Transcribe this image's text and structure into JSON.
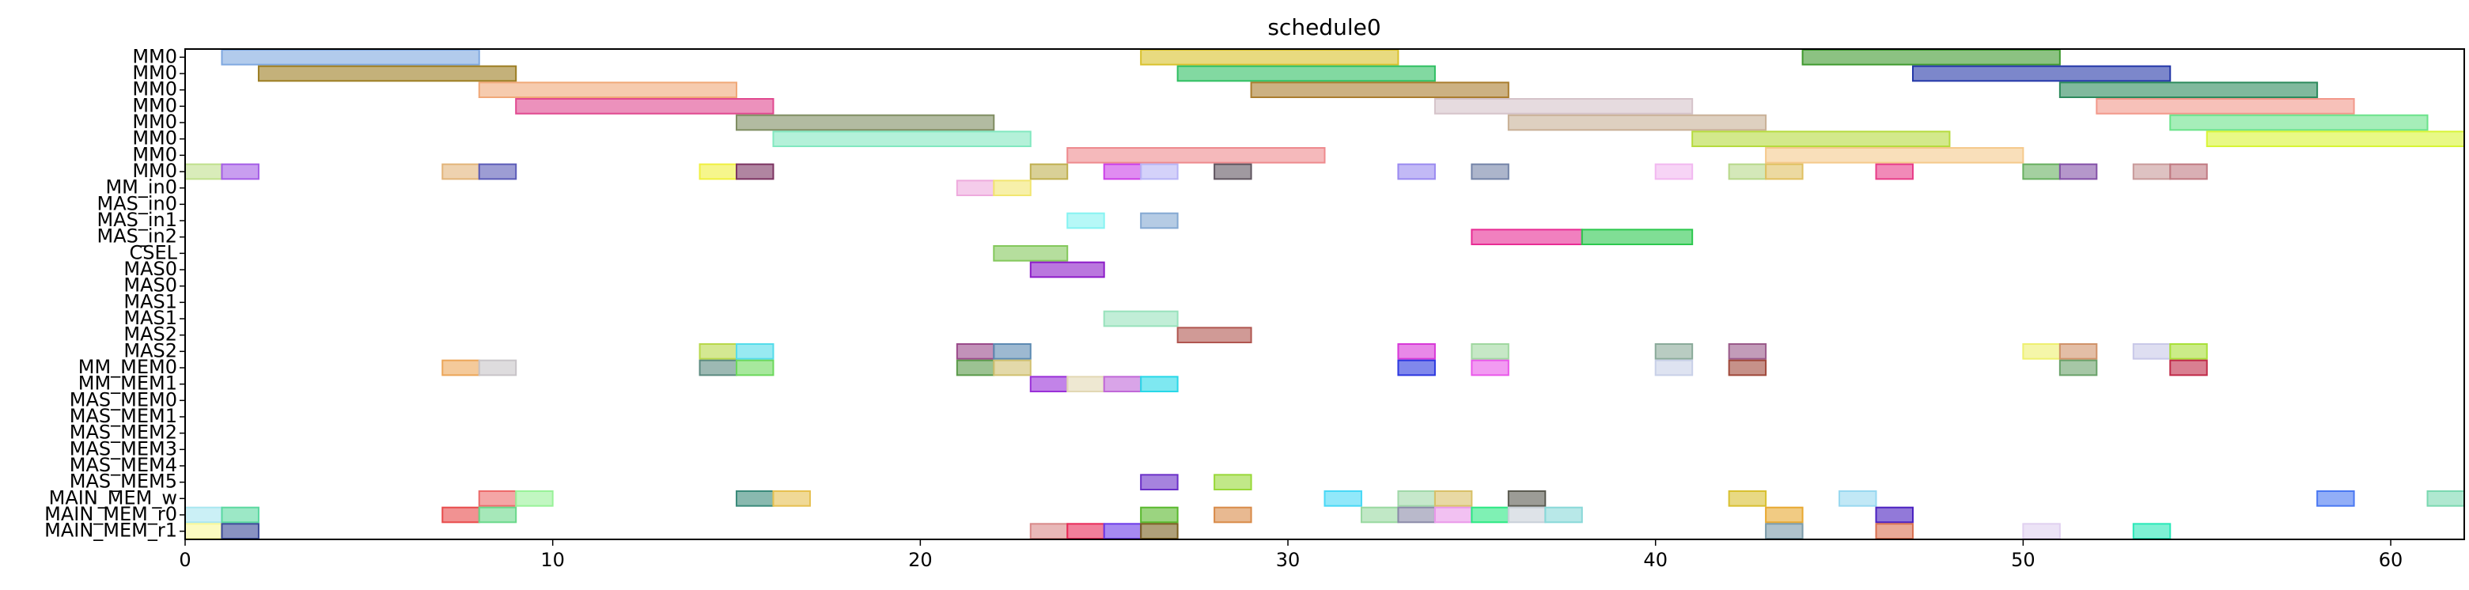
{
  "chart_data": {
    "type": "gantt",
    "title": "schedule0",
    "xlabel": "",
    "ylabel": "",
    "xlim": [
      0,
      62
    ],
    "xticks": [
      0,
      10,
      20,
      30,
      40,
      50,
      60
    ],
    "grid": false,
    "rows": [
      "MM0",
      "MM0",
      "MM0",
      "MM0",
      "MM0",
      "MM0",
      "MM0",
      "MM0",
      "MM_in0",
      "MAS_in0",
      "MAS_in1",
      "MAS_in2",
      "CSEL",
      "MAS0",
      "MAS0",
      "MAS1",
      "MAS1",
      "MAS2",
      "MAS2",
      "MM_MEM0",
      "MM_MEM1",
      "MAS_MEM0",
      "MAS_MEM1",
      "MAS_MEM2",
      "MAS_MEM3",
      "MAS_MEM4",
      "MAS_MEM5",
      "MAIN_MEM_w",
      "MAIN_MEM_r0",
      "MAIN_MEM_r1"
    ],
    "tasks": [
      {
        "row": 0,
        "start": 1,
        "end": 8,
        "color": "#7fa8e0"
      },
      {
        "row": 0,
        "start": 26,
        "end": 33,
        "color": "#d9c12c"
      },
      {
        "row": 0,
        "start": 44,
        "end": 51,
        "color": "#3f9a2e"
      },
      {
        "row": 1,
        "start": 2,
        "end": 9,
        "color": "#9c7d22"
      },
      {
        "row": 1,
        "start": 27,
        "end": 34,
        "color": "#2fbf62"
      },
      {
        "row": 1,
        "start": 47,
        "end": 54,
        "color": "#2437a8"
      },
      {
        "row": 2,
        "start": 8,
        "end": 15,
        "color": "#f0a878"
      },
      {
        "row": 2,
        "start": 29,
        "end": 36,
        "color": "#aa7d2e"
      },
      {
        "row": 2,
        "start": 51,
        "end": 58,
        "color": "#2c8a5c"
      },
      {
        "row": 3,
        "start": 9,
        "end": 16,
        "color": "#e0488f"
      },
      {
        "row": 3,
        "start": 34,
        "end": 41,
        "color": "#d5c3c9"
      },
      {
        "row": 3,
        "start": 52,
        "end": 59,
        "color": "#f2988a"
      },
      {
        "row": 4,
        "start": 15,
        "end": 22,
        "color": "#7f8d62"
      },
      {
        "row": 4,
        "start": 36,
        "end": 43,
        "color": "#c8b096"
      },
      {
        "row": 4,
        "start": 54,
        "end": 61,
        "color": "#6ae38a"
      },
      {
        "row": 5,
        "start": 16,
        "end": 23,
        "color": "#82e8c0"
      },
      {
        "row": 5,
        "start": 41,
        "end": 48,
        "color": "#b6db3e"
      },
      {
        "row": 5,
        "start": 55,
        "end": 62,
        "color": "#d8f536"
      },
      {
        "row": 6,
        "start": 24,
        "end": 31,
        "color": "#ee8a8e"
      },
      {
        "row": 6,
        "start": 43,
        "end": 50,
        "color": "#f5c98c"
      },
      {
        "row": 7,
        "start": 0,
        "end": 1,
        "color": "#bfe08c"
      },
      {
        "row": 7,
        "start": 1,
        "end": 2,
        "color": "#a55ee6"
      },
      {
        "row": 7,
        "start": 7,
        "end": 8,
        "color": "#e2b47a"
      },
      {
        "row": 7,
        "start": 8,
        "end": 9,
        "color": "#5c5cb8"
      },
      {
        "row": 7,
        "start": 14,
        "end": 15,
        "color": "#f0f040"
      },
      {
        "row": 7,
        "start": 15,
        "end": 16,
        "color": "#7c3462"
      },
      {
        "row": 7,
        "start": 23,
        "end": 24,
        "color": "#c0b050"
      },
      {
        "row": 7,
        "start": 25,
        "end": 26,
        "color": "#cc40e8"
      },
      {
        "row": 7,
        "start": 26,
        "end": 27,
        "color": "#b8b4f6"
      },
      {
        "row": 7,
        "start": 28,
        "end": 29,
        "color": "#605560"
      },
      {
        "row": 7,
        "start": 33,
        "end": 34,
        "color": "#9a8af0"
      },
      {
        "row": 7,
        "start": 35,
        "end": 36,
        "color": "#7484a8"
      },
      {
        "row": 7,
        "start": 40,
        "end": 41,
        "color": "#f2b8f0"
      },
      {
        "row": 7,
        "start": 42,
        "end": 43,
        "color": "#b8d88a"
      },
      {
        "row": 7,
        "start": 43,
        "end": 44,
        "color": "#e0c060"
      },
      {
        "row": 7,
        "start": 46,
        "end": 47,
        "color": "#e83c88"
      },
      {
        "row": 7,
        "start": 50,
        "end": 51,
        "color": "#68b060"
      },
      {
        "row": 7,
        "start": 51,
        "end": 52,
        "color": "#8452a8"
      },
      {
        "row": 7,
        "start": 53,
        "end": 54,
        "color": "#c89a9a"
      },
      {
        "row": 7,
        "start": 54,
        "end": 55,
        "color": "#c07a82"
      },
      {
        "row": 8,
        "start": 21,
        "end": 22,
        "color": "#eeaadd"
      },
      {
        "row": 8,
        "start": 22,
        "end": 23,
        "color": "#f2e670"
      },
      {
        "row": 10,
        "start": 24,
        "end": 25,
        "color": "#86f3f2"
      },
      {
        "row": 10,
        "start": 26,
        "end": 27,
        "color": "#84a8d2"
      },
      {
        "row": 11,
        "start": 35,
        "end": 38,
        "color": "#e82c94"
      },
      {
        "row": 11,
        "start": 38,
        "end": 41,
        "color": "#2cc84e"
      },
      {
        "row": 12,
        "start": 22,
        "end": 24,
        "color": "#84c85c"
      },
      {
        "row": 13,
        "start": 23,
        "end": 25,
        "color": "#8c1cc8"
      },
      {
        "row": 16,
        "start": 25,
        "end": 27,
        "color": "#98e2bc"
      },
      {
        "row": 17,
        "start": 27,
        "end": 29,
        "color": "#b05650"
      },
      {
        "row": 18,
        "start": 14,
        "end": 15,
        "color": "#b8d84a"
      },
      {
        "row": 18,
        "start": 15,
        "end": 16,
        "color": "#54dcea"
      },
      {
        "row": 18,
        "start": 21,
        "end": 22,
        "color": "#9a4a8a"
      },
      {
        "row": 18,
        "start": 22,
        "end": 23,
        "color": "#5c8ab2"
      },
      {
        "row": 18,
        "start": 33,
        "end": 34,
        "color": "#d838d8"
      },
      {
        "row": 18,
        "start": 35,
        "end": 36,
        "color": "#a0d8a0"
      },
      {
        "row": 18,
        "start": 40,
        "end": 41,
        "color": "#8aaa9a"
      },
      {
        "row": 18,
        "start": 42,
        "end": 43,
        "color": "#9a5a8a"
      },
      {
        "row": 18,
        "start": 50,
        "end": 51,
        "color": "#eef070"
      },
      {
        "row": 18,
        "start": 51,
        "end": 52,
        "color": "#d0926a"
      },
      {
        "row": 18,
        "start": 53,
        "end": 54,
        "color": "#c8c8e8"
      },
      {
        "row": 18,
        "start": 54,
        "end": 55,
        "color": "#a8e038"
      },
      {
        "row": 19,
        "start": 7,
        "end": 8,
        "color": "#eca658"
      },
      {
        "row": 19,
        "start": 8,
        "end": 9,
        "color": "#c8c4c8"
      },
      {
        "row": 19,
        "start": 14,
        "end": 15,
        "color": "#5c8a80"
      },
      {
        "row": 19,
        "start": 15,
        "end": 16,
        "color": "#6cd85c"
      },
      {
        "row": 19,
        "start": 21,
        "end": 22,
        "color": "#5a9a4a"
      },
      {
        "row": 19,
        "start": 22,
        "end": 23,
        "color": "#d0c070"
      },
      {
        "row": 19,
        "start": 33,
        "end": 34,
        "color": "#2c38e0"
      },
      {
        "row": 19,
        "start": 35,
        "end": 36,
        "color": "#ea58ea"
      },
      {
        "row": 19,
        "start": 40,
        "end": 41,
        "color": "#c8d0e8"
      },
      {
        "row": 19,
        "start": 42,
        "end": 43,
        "color": "#a0483a"
      },
      {
        "row": 19,
        "start": 51,
        "end": 52,
        "color": "#6aa26a"
      },
      {
        "row": 19,
        "start": 54,
        "end": 55,
        "color": "#c02a48"
      },
      {
        "row": 20,
        "start": 23,
        "end": 24,
        "color": "#9a30d8"
      },
      {
        "row": 20,
        "start": 24,
        "end": 25,
        "color": "#e2d8b4"
      },
      {
        "row": 20,
        "start": 25,
        "end": 26,
        "color": "#c068d8"
      },
      {
        "row": 20,
        "start": 26,
        "end": 27,
        "color": "#28d8e8"
      },
      {
        "row": 26,
        "start": 26,
        "end": 27,
        "color": "#6a30c8"
      },
      {
        "row": 26,
        "start": 28,
        "end": 29,
        "color": "#98d838"
      },
      {
        "row": 27,
        "start": 8,
        "end": 9,
        "color": "#ec6a6a"
      },
      {
        "row": 27,
        "start": 9,
        "end": 10,
        "color": "#98f298"
      },
      {
        "row": 27,
        "start": 15,
        "end": 16,
        "color": "#3a8a7a"
      },
      {
        "row": 27,
        "start": 16,
        "end": 17,
        "color": "#e6c050"
      },
      {
        "row": 27,
        "start": 31,
        "end": 32,
        "color": "#48d8f6"
      },
      {
        "row": 27,
        "start": 33,
        "end": 34,
        "color": "#a0d8a8"
      },
      {
        "row": 27,
        "start": 34,
        "end": 35,
        "color": "#d8c068"
      },
      {
        "row": 27,
        "start": 36,
        "end": 37,
        "color": "#5a5a50"
      },
      {
        "row": 27,
        "start": 42,
        "end": 43,
        "color": "#d8c030"
      },
      {
        "row": 27,
        "start": 45,
        "end": 46,
        "color": "#98d8f0"
      },
      {
        "row": 27,
        "start": 58,
        "end": 59,
        "color": "#4a78f2"
      },
      {
        "row": 27,
        "start": 61,
        "end": 62,
        "color": "#7ad8b0"
      },
      {
        "row": 28,
        "start": 0,
        "end": 1,
        "color": "#a8e6f0"
      },
      {
        "row": 28,
        "start": 1,
        "end": 2,
        "color": "#5ad8a0"
      },
      {
        "row": 28,
        "start": 7,
        "end": 8,
        "color": "#e84a4a"
      },
      {
        "row": 28,
        "start": 8,
        "end": 9,
        "color": "#6ad88a"
      },
      {
        "row": 28,
        "start": 26,
        "end": 27,
        "color": "#58b82c"
      },
      {
        "row": 28,
        "start": 28,
        "end": 29,
        "color": "#d88a48"
      },
      {
        "row": 28,
        "start": 32,
        "end": 33,
        "color": "#98d8a0"
      },
      {
        "row": 28,
        "start": 33,
        "end": 34,
        "color": "#8a8aa8"
      },
      {
        "row": 28,
        "start": 34,
        "end": 35,
        "color": "#ea98ea"
      },
      {
        "row": 28,
        "start": 35,
        "end": 36,
        "color": "#2ae882"
      },
      {
        "row": 28,
        "start": 36,
        "end": 37,
        "color": "#c8d0d8"
      },
      {
        "row": 28,
        "start": 37,
        "end": 38,
        "color": "#88d8d8"
      },
      {
        "row": 28,
        "start": 43,
        "end": 44,
        "color": "#e8a830"
      },
      {
        "row": 28,
        "start": 46,
        "end": 47,
        "color": "#4a20c0"
      },
      {
        "row": 29,
        "start": 0,
        "end": 1,
        "color": "#f8f898"
      },
      {
        "row": 29,
        "start": 1,
        "end": 2,
        "color": "#3a4a98"
      },
      {
        "row": 29,
        "start": 23,
        "end": 24,
        "color": "#d88888"
      },
      {
        "row": 29,
        "start": 24,
        "end": 25,
        "color": "#e82a58"
      },
      {
        "row": 29,
        "start": 25,
        "end": 26,
        "color": "#6a3ae8"
      },
      {
        "row": 29,
        "start": 26,
        "end": 27,
        "color": "#7a6020"
      },
      {
        "row": 29,
        "start": 43,
        "end": 44,
        "color": "#7a9aa8"
      },
      {
        "row": 29,
        "start": 46,
        "end": 47,
        "color": "#d87050"
      },
      {
        "row": 29,
        "start": 50,
        "end": 51,
        "color": "#e0d0f0"
      },
      {
        "row": 29,
        "start": 53,
        "end": 54,
        "color": "#28e8b8"
      }
    ]
  }
}
